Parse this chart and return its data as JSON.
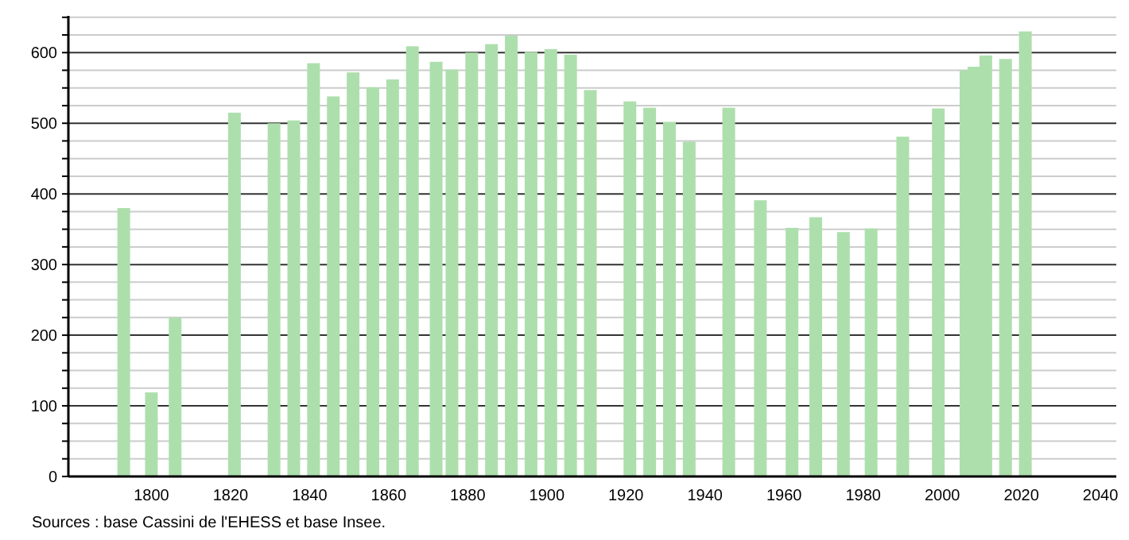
{
  "chart_data": {
    "type": "bar",
    "color": "#addfad",
    "x": [
      1793,
      1800,
      1806,
      1821,
      1831,
      1836,
      1841,
      1846,
      1851,
      1856,
      1861,
      1866,
      1872,
      1876,
      1881,
      1886,
      1891,
      1896,
      1901,
      1906,
      1911,
      1921,
      1926,
      1931,
      1936,
      1946,
      1954,
      1962,
      1968,
      1975,
      1982,
      1990,
      1999,
      2006,
      2008,
      2011,
      2016,
      2021
    ],
    "values": [
      380,
      119,
      225,
      515,
      500,
      504,
      585,
      538,
      572,
      551,
      562,
      609,
      587,
      576,
      600,
      612,
      624,
      601,
      605,
      597,
      547,
      531,
      522,
      502,
      474,
      522,
      391,
      352,
      367,
      346,
      351,
      481,
      521,
      575,
      580,
      596,
      591,
      630
    ],
    "xlim": [
      1779,
      2044
    ],
    "xticks": [
      1800,
      1820,
      1840,
      1860,
      1880,
      1900,
      1920,
      1940,
      1960,
      1980,
      2000,
      2020,
      2040
    ],
    "ylim": [
      0,
      652
    ],
    "yticks": [
      0,
      {
        "value": 25,
        "label": null
      },
      {
        "value": 50,
        "label": null
      },
      {
        "value": 75,
        "label": null
      },
      100,
      {
        "value": 125,
        "label": null
      },
      {
        "value": 150,
        "label": null
      },
      {
        "value": 175,
        "label": null
      },
      200,
      {
        "value": 225,
        "label": null
      },
      {
        "value": 250,
        "label": null
      },
      {
        "value": 275,
        "label": null
      },
      300,
      {
        "value": 325,
        "label": null
      },
      {
        "value": 350,
        "label": null
      },
      {
        "value": 375,
        "label": null
      },
      400,
      {
        "value": 425,
        "label": null
      },
      {
        "value": 450,
        "label": null
      },
      {
        "value": 475,
        "label": null
      },
      500,
      {
        "value": 525,
        "label": null
      },
      {
        "value": 550,
        "label": null
      },
      {
        "value": 575,
        "label": null
      },
      600,
      {
        "value": 625,
        "label": null
      },
      {
        "value": 650,
        "label": null
      }
    ],
    "grid": "y",
    "annotations": [
      "Sources : base Cassini de l'EHESS et base Insee."
    ]
  }
}
